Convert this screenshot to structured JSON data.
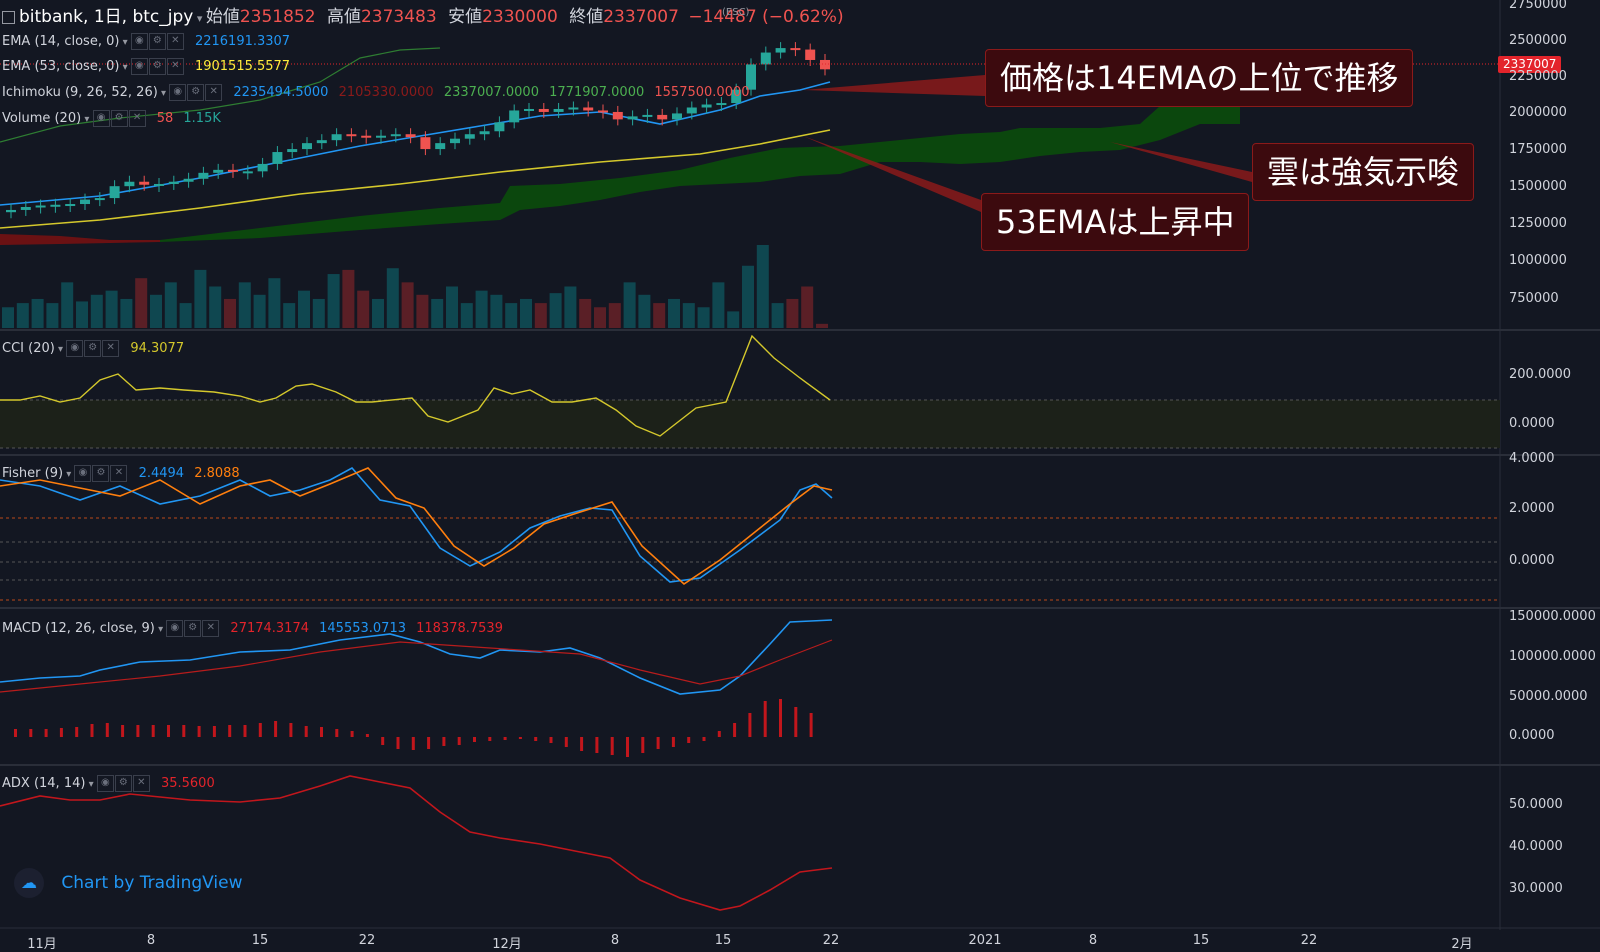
{
  "header": {
    "symbol": "bitbank, 1日, btc_jpy",
    "open_label": "始値",
    "open": "2351852",
    "high_label": "高値",
    "high": "2373483",
    "low_label": "安値",
    "low": "2330000",
    "close_label": "終値",
    "close": "2337007",
    "change": "−14487 (−0.62%)",
    "esc_hint": "(ESC)"
  },
  "indicators": {
    "ema14": {
      "label": "EMA (14, close, 0)",
      "value": "2216191.3307"
    },
    "ema53": {
      "label": "EMA (53, close, 0)",
      "value": "1901515.5577"
    },
    "ichimoku": {
      "label": "Ichimoku (9, 26, 52, 26)",
      "values": [
        "2235494.5000",
        "2105330.0000",
        "2337007.0000",
        "1771907.0000",
        "1557500.0000"
      ]
    },
    "volume": {
      "label": "Volume (20)",
      "value": "58",
      "ma": "1.15K"
    },
    "cci": {
      "label": "CCI (20)",
      "value": "94.3077"
    },
    "fisher": {
      "label": "Fisher (9)",
      "value1": "2.4494",
      "value2": "2.8088"
    },
    "macd": {
      "label": "MACD (12, 26, close, 9)",
      "value1": "27174.3174",
      "value2": "145553.0713",
      "value3": "118378.7539"
    },
    "adx": {
      "label": "ADX (14, 14)",
      "value": "35.5600"
    }
  },
  "callouts": {
    "c1": "価格は14EMAの上位で推移",
    "c2": "雲は強気示唆",
    "c3": "53EMAは上昇中"
  },
  "price_badge": "2337007",
  "watermark": "Chart by TradingView",
  "axes": {
    "price": [
      "2750000",
      "2500000",
      "2250000",
      "2000000",
      "1750000",
      "1500000",
      "1250000",
      "1000000",
      "750000"
    ],
    "cci": [
      "200.0000",
      "0.0000"
    ],
    "fisher": [
      "4.0000",
      "2.0000",
      "0.0000"
    ],
    "macd": [
      "150000.0000",
      "100000.0000",
      "50000.0000",
      "0.0000"
    ],
    "adx": [
      "50.0000",
      "40.0000",
      "30.0000"
    ],
    "time": [
      "11月",
      "8",
      "15",
      "22",
      "12月",
      "8",
      "15",
      "22",
      "2021",
      "8",
      "15",
      "22",
      "2月"
    ]
  },
  "colors": {
    "background": "#131722",
    "up": "#26a69a",
    "down": "#ef5350",
    "ema14": "#2196f3",
    "ema53": "#d4c82c",
    "cloud_bull": "#0b4d0b",
    "cloud_bear": "#7a1010",
    "fisher1": "#2196f3",
    "fisher2": "#ff7f0e",
    "adx": "#e3242b",
    "callout_bg": "#3c0a0e"
  },
  "chart_data": {
    "type": "line",
    "candles_close": [
      1390000,
      1410000,
      1420000,
      1425000,
      1430000,
      1460000,
      1470000,
      1550000,
      1580000,
      1560000,
      1565000,
      1580000,
      1600000,
      1640000,
      1660000,
      1650000,
      1650000,
      1700000,
      1780000,
      1800000,
      1840000,
      1860000,
      1900000,
      1890000,
      1880000,
      1890000,
      1900000,
      1880000,
      1800000,
      1840000,
      1870000,
      1900000,
      1920000,
      1980000,
      2060000,
      2070000,
      2050000,
      2070000,
      2080000,
      2060000,
      2050000,
      2000000,
      2020000,
      2030000,
      2000000,
      2040000,
      2080000,
      2100000,
      2110000,
      2200000,
      2370000,
      2450000,
      2480000,
      2470000,
      2400000,
      2337007
    ],
    "ema14_end": 2216191.3307,
    "ema53_end": 1901515.5577,
    "cci_last": 94.3077,
    "fisher_last": [
      2.4494,
      2.8088
    ],
    "macd_last": [
      27174.3174,
      145553.0713,
      118378.7539
    ],
    "adx_last": 35.56,
    "price_range": [
      650000,
      2800000
    ]
  }
}
